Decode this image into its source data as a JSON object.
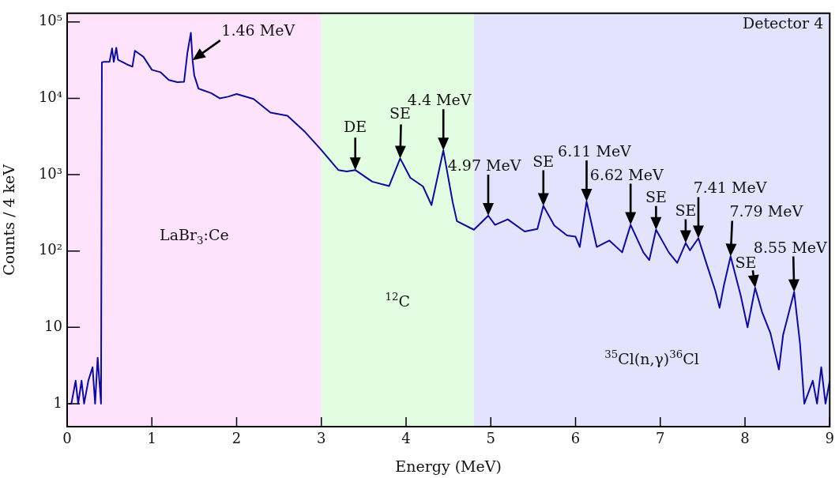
{
  "chart_data": {
    "type": "line",
    "xlabel": "Energy (MeV)",
    "ylabel": "Counts / 4 keV",
    "log": "y",
    "marker": "none",
    "xlim": [
      0,
      9
    ],
    "xticks": [
      0,
      1,
      2,
      3,
      4,
      5,
      6,
      7,
      8,
      9
    ],
    "ylim": [
      0.5,
      130000
    ],
    "yticks": [
      1,
      10,
      {
        "value": 100,
        "label": "10²"
      },
      {
        "value": 1000,
        "label": "10³"
      },
      {
        "value": 10000,
        "label": "10⁴"
      },
      {
        "value": 100000,
        "label": "10⁵"
      }
    ],
    "bands": [
      {
        "axis": "x",
        "from": 0,
        "to": 3,
        "label": "LaBr$_{3}$:Ce",
        "color": "#ffe3fd"
      },
      {
        "axis": "x",
        "from": 3,
        "to": 4.8,
        "label": "$^{12}$C",
        "color": "#e3fde3"
      },
      {
        "axis": "x",
        "from": 4.8,
        "to": 9,
        "label": "$^{35}$Cl(n,γ)$^{36}$Cl",
        "color": "#e3e3fd"
      }
    ],
    "annotations": [
      "Detector 4",
      {
        "text": "1.46 MeV",
        "x": 1.48,
        "y": 31600
      },
      {
        "text": "DE",
        "x": 3.4,
        "y": 1150
      },
      {
        "text": "SE",
        "x": 3.93,
        "y": 1630
      },
      {
        "text": "4.4 MeV",
        "x": 4.44,
        "y": 2080
      },
      {
        "text": "4.97 MeV",
        "x": 4.97,
        "y": 290
      },
      {
        "text": "SE",
        "x": 5.62,
        "y": 390
      },
      {
        "text": "6.11 MeV",
        "x": 6.13,
        "y": 445
      },
      {
        "text": "6.62 MeV",
        "x": 6.65,
        "y": 220
      },
      {
        "text": "SE",
        "x": 6.95,
        "y": 190
      },
      {
        "text": "SE",
        "x": 7.3,
        "y": 127
      },
      {
        "text": "7.41 MeV",
        "x": 7.45,
        "y": 147
      },
      {
        "text": "7.79 MeV",
        "x": 7.83,
        "y": 85
      },
      {
        "text": "SE",
        "x": 8.12,
        "y": 33
      },
      {
        "text": "8.55 MeV",
        "x": 8.58,
        "y": 29
      }
    ],
    "series": [
      {
        "color": "#0c0c96",
        "x": [
          0.02,
          0.05,
          0.1,
          0.13,
          0.17,
          0.2,
          0.25,
          0.3,
          0.33,
          0.36,
          0.38,
          0.4,
          0.41,
          0.43,
          0.5,
          0.53,
          0.55,
          0.58,
          0.6,
          0.7,
          0.77,
          0.8,
          0.9,
          1.0,
          1.1,
          1.2,
          1.3,
          1.38,
          1.42,
          1.46,
          1.48,
          1.5,
          1.55,
          1.7,
          1.8,
          1.9,
          2.0,
          2.2,
          2.4,
          2.6,
          2.8,
          3.0,
          3.2,
          3.3,
          3.4,
          3.6,
          3.8,
          3.93,
          4.05,
          4.2,
          4.3,
          4.44,
          4.55,
          4.6,
          4.8,
          4.97,
          5.05,
          5.2,
          5.4,
          5.55,
          5.62,
          5.75,
          5.9,
          6.0,
          6.05,
          6.13,
          6.25,
          6.4,
          6.55,
          6.65,
          6.8,
          6.87,
          6.95,
          7.1,
          7.2,
          7.3,
          7.35,
          7.45,
          7.55,
          7.65,
          7.7,
          7.75,
          7.83,
          7.95,
          8.03,
          8.12,
          8.2,
          8.3,
          8.4,
          8.45,
          8.58,
          8.65,
          8.7,
          8.8,
          8.85,
          8.9,
          8.95,
          9.0
        ],
        "values": [
          1,
          1,
          2,
          1,
          2,
          1,
          2,
          3,
          1,
          4,
          2,
          1,
          29500,
          30000,
          30000,
          45000,
          30000,
          46000,
          32000,
          28000,
          26000,
          42000,
          35000,
          23600,
          22000,
          17400,
          16300,
          16500,
          40000,
          72000,
          31600,
          20000,
          13400,
          11700,
          10000,
          10500,
          11400,
          9800,
          6500,
          5900,
          3700,
          2100,
          1150,
          1100,
          1150,
          810,
          710,
          1630,
          910,
          700,
          400,
          2080,
          436,
          246,
          190,
          290,
          220,
          260,
          180,
          195,
          390,
          215,
          160,
          154,
          113,
          445,
          113,
          137,
          96,
          220,
          96,
          76,
          190,
          96,
          70,
          127,
          102,
          147,
          66,
          30,
          18,
          35,
          85,
          26,
          10,
          33,
          16,
          8.4,
          2.8,
          8,
          29,
          6,
          1,
          2,
          1,
          3,
          1,
          2
        ]
      }
    ]
  }
}
